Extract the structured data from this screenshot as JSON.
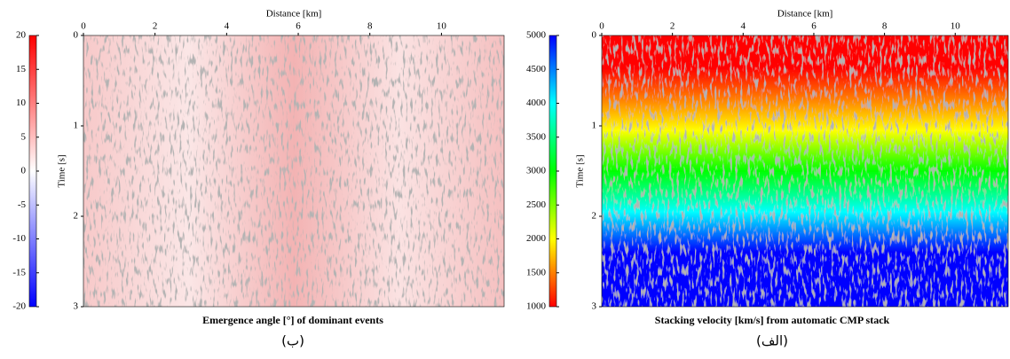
{
  "chart_data": [
    {
      "type": "image",
      "title": "Emergence angle [°] of dominant events",
      "caption": "(ب)",
      "xlabel": "Distance [km]",
      "ylabel": "Time [s]",
      "xlim": [
        0,
        11.75
      ],
      "xticks": [
        0,
        2,
        4,
        6,
        8,
        10
      ],
      "ylim": [
        3,
        0
      ],
      "yticks": [
        0,
        1,
        2,
        3
      ],
      "colorbar": {
        "clim": [
          -20,
          20
        ],
        "ticks": [
          20,
          15,
          10,
          5,
          0,
          -5,
          -10,
          -15,
          -20
        ],
        "colors": [
          "#0000ff",
          "#ffffff",
          "#ff0000"
        ]
      }
    },
    {
      "type": "image",
      "title": "Stacking velocity [km/s] from automatic CMP stack",
      "caption": "(الف)",
      "xlabel": "Distance [km]",
      "ylabel": "Time [s]",
      "xlim": [
        0,
        11.5
      ],
      "xticks": [
        0,
        2,
        4,
        6,
        8,
        10
      ],
      "ylim": [
        3,
        0
      ],
      "yticks": [
        0,
        1,
        2,
        3
      ],
      "colorbar": {
        "clim": [
          1000,
          5000
        ],
        "ticks": [
          5000,
          4500,
          4000,
          3500,
          3000,
          2500,
          2000,
          1500,
          1000
        ],
        "colors": [
          "#ff0000",
          "#ffff00",
          "#00ff00",
          "#00ffff",
          "#0000ff"
        ]
      }
    }
  ]
}
